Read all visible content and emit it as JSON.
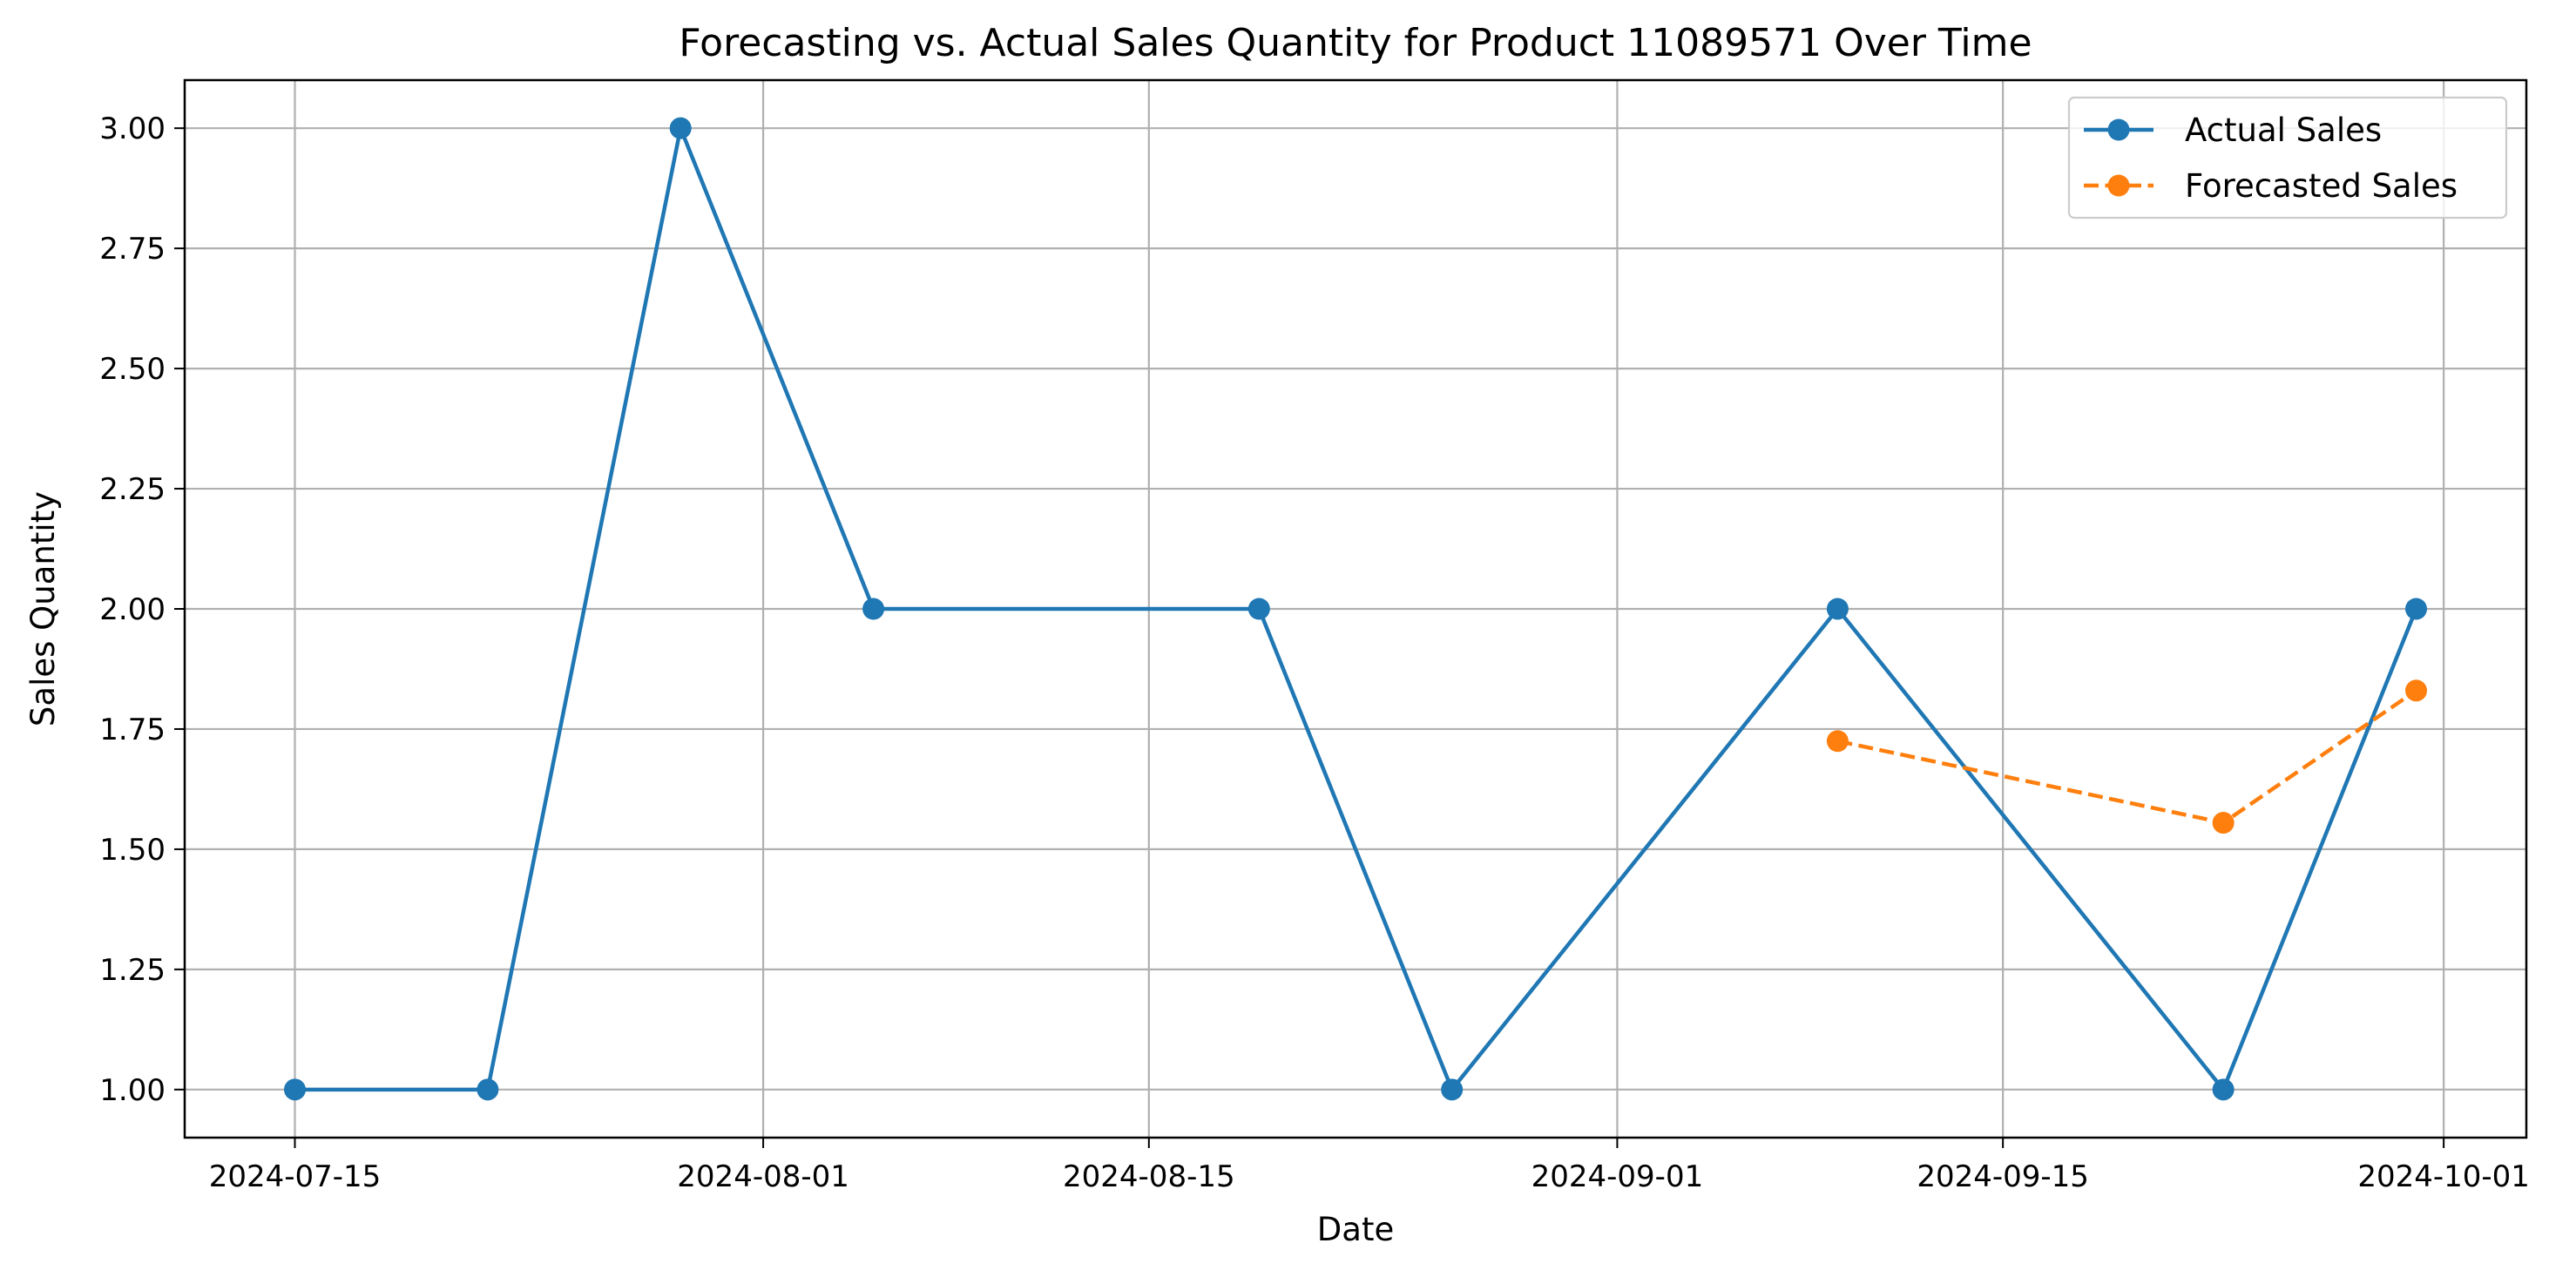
{
  "chart_data": {
    "type": "line",
    "title": "Forecasting vs. Actual Sales Quantity for Product 11089571 Over Time",
    "xlabel": "Date",
    "ylabel": "Sales Quantity",
    "grid": true,
    "legend_position": "top-right",
    "x_ticks": [
      "2024-07-15",
      "2024-08-01",
      "2024-08-15",
      "2024-09-01",
      "2024-09-15",
      "2024-10-01"
    ],
    "y_ticks": [
      "1.00",
      "1.25",
      "1.50",
      "1.75",
      "2.00",
      "2.25",
      "2.50",
      "2.75",
      "3.00"
    ],
    "ylim": [
      0.9,
      3.1
    ],
    "xlim": [
      "2024-07-11",
      "2024-10-04"
    ],
    "series": [
      {
        "name": "Actual Sales",
        "color": "#1f77b4",
        "style": "solid",
        "points": [
          {
            "x": "2024-07-15",
            "y": 1
          },
          {
            "x": "2024-07-22",
            "y": 1
          },
          {
            "x": "2024-07-29",
            "y": 3
          },
          {
            "x": "2024-08-05",
            "y": 2
          },
          {
            "x": "2024-08-19",
            "y": 2
          },
          {
            "x": "2024-08-26",
            "y": 1
          },
          {
            "x": "2024-09-09",
            "y": 2
          },
          {
            "x": "2024-09-23",
            "y": 1
          },
          {
            "x": "2024-09-30",
            "y": 2
          }
        ]
      },
      {
        "name": "Forecasted Sales",
        "color": "#ff7f0e",
        "style": "dashed",
        "points": [
          {
            "x": "2024-09-09",
            "y": 1.725
          },
          {
            "x": "2024-09-23",
            "y": 1.555
          },
          {
            "x": "2024-09-30",
            "y": 1.83
          }
        ]
      }
    ]
  }
}
